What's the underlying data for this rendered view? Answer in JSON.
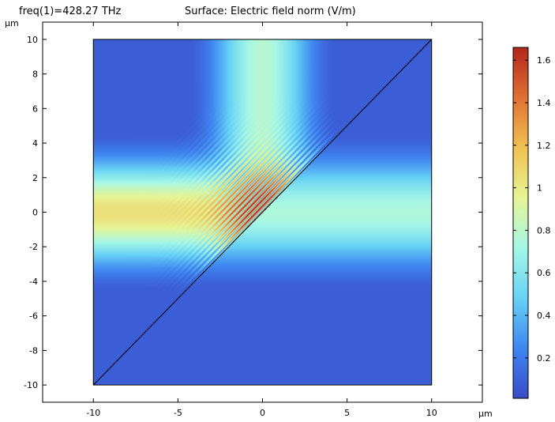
{
  "header": {
    "left_label": "freq(1)=428.27 THz",
    "title": "Surface: Electric field norm (V/m)"
  },
  "chart_data": {
    "type": "heatmap",
    "title": "Surface: Electric field norm (V/m)",
    "subtitle": "freq(1)=428.27 THz",
    "x_unit": "µm",
    "y_unit": "µm",
    "xlim": [
      -13,
      13
    ],
    "ylim": [
      -11,
      11
    ],
    "domain": {
      "x": [
        -10,
        10
      ],
      "y": [
        -10,
        10
      ]
    },
    "interface_line": {
      "from": [
        -10,
        -10
      ],
      "to": [
        10,
        10
      ]
    },
    "x_ticks": [
      -10,
      -5,
      0,
      5,
      10
    ],
    "y_ticks": [
      10,
      8,
      6,
      4,
      2,
      0,
      -2,
      -4,
      -6,
      -8,
      -10
    ],
    "colorbar": {
      "range": [
        0.01,
        1.66
      ],
      "ticks": [
        1.6,
        1.4,
        1.2,
        1,
        0.8,
        0.6,
        0.4,
        0.2
      ],
      "colormap": [
        "#3a4bc9",
        "#3f86f0",
        "#67d2f5",
        "#a5f7e6",
        "#e6f494",
        "#f0c152",
        "#e07033",
        "#b3261d"
      ]
    },
    "field_features": {
      "incident_beam_center_y": 0,
      "incident_beam_peak": 1.05,
      "transmitted_beam_peak": 0.75,
      "background": 0.08,
      "reflected_beam_direction": "upward from interface toward top",
      "interference_max": 1.65
    }
  }
}
